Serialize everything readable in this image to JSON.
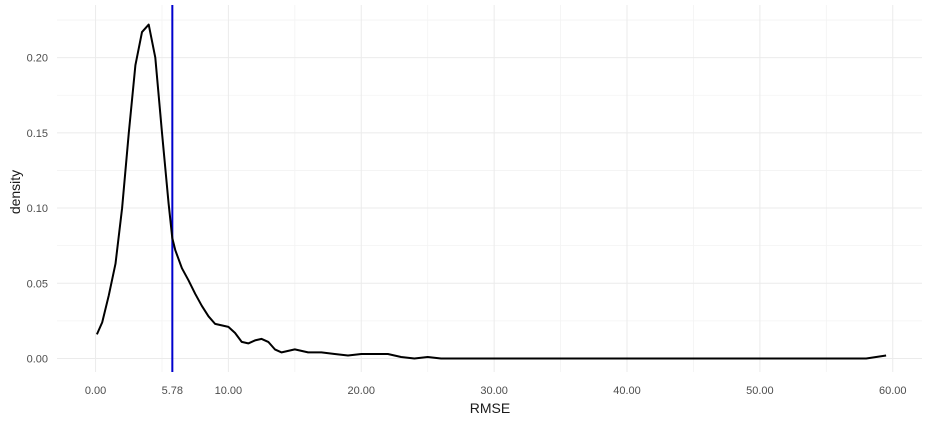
{
  "chart_data": {
    "type": "line",
    "title": "",
    "xlabel": "RMSE",
    "ylabel": "density",
    "xlim": [
      -2.9,
      62.2
    ],
    "ylim": [
      -0.009,
      0.235
    ],
    "x_ticks": [
      0,
      5.78,
      10,
      20,
      30,
      40,
      50,
      60
    ],
    "x_tick_labels": [
      "0.00",
      "5.78",
      "10.00",
      "20.00",
      "30.00",
      "40.00",
      "50.00",
      "60.00"
    ],
    "x_minor_grid": [
      5,
      15,
      25,
      35,
      45,
      55
    ],
    "y_ticks": [
      0,
      0.05,
      0.1,
      0.15,
      0.2
    ],
    "y_tick_labels": [
      "0.00",
      "0.05",
      "0.10",
      "0.15",
      "0.20"
    ],
    "y_minor_grid": [
      0.025,
      0.075,
      0.125,
      0.175,
      0.225
    ],
    "grid": true,
    "reference_line": {
      "x": 5.78,
      "color": "#0000cd"
    },
    "series": [
      {
        "color": "#000000",
        "x": [
          0.1,
          0.5,
          1.0,
          1.5,
          2.0,
          2.5,
          3.0,
          3.5,
          4.0,
          4.5,
          5.0,
          5.5,
          5.78,
          6.0,
          6.5,
          7.0,
          7.5,
          8.0,
          8.5,
          9.0,
          9.5,
          10.0,
          10.5,
          11.0,
          11.5,
          12.0,
          12.5,
          13.0,
          13.5,
          14.0,
          14.5,
          15.0,
          15.5,
          16.0,
          17.0,
          18.0,
          19.0,
          20.0,
          21.0,
          22.0,
          23.0,
          24.0,
          25.0,
          26.0,
          30.0,
          40.0,
          50.0,
          58.0,
          59.5
        ],
        "values": [
          0.016,
          0.024,
          0.042,
          0.063,
          0.1,
          0.15,
          0.195,
          0.217,
          0.222,
          0.2,
          0.15,
          0.103,
          0.08,
          0.072,
          0.06,
          0.052,
          0.043,
          0.035,
          0.028,
          0.023,
          0.022,
          0.021,
          0.017,
          0.011,
          0.01,
          0.012,
          0.013,
          0.011,
          0.006,
          0.004,
          0.005,
          0.006,
          0.005,
          0.004,
          0.004,
          0.003,
          0.002,
          0.003,
          0.003,
          0.003,
          0.001,
          0.0,
          0.001,
          0.0,
          0.0,
          0.0,
          0.0,
          0.0,
          0.002
        ]
      }
    ]
  }
}
